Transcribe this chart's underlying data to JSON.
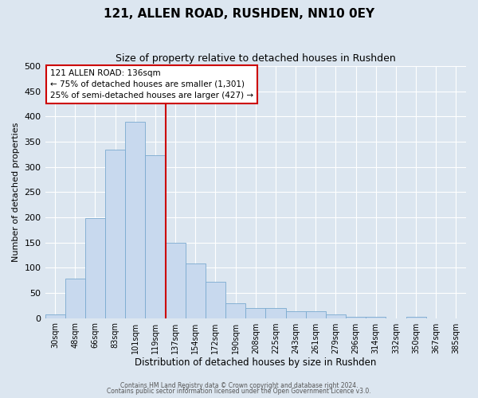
{
  "title": "121, ALLEN ROAD, RUSHDEN, NN10 0EY",
  "subtitle": "Size of property relative to detached houses in Rushden",
  "xlabel": "Distribution of detached houses by size in Rushden",
  "ylabel": "Number of detached properties",
  "bar_labels": [
    "30sqm",
    "48sqm",
    "66sqm",
    "83sqm",
    "101sqm",
    "119sqm",
    "137sqm",
    "154sqm",
    "172sqm",
    "190sqm",
    "208sqm",
    "225sqm",
    "243sqm",
    "261sqm",
    "279sqm",
    "296sqm",
    "314sqm",
    "332sqm",
    "350sqm",
    "367sqm",
    "385sqm"
  ],
  "bar_heights": [
    8,
    78,
    198,
    335,
    390,
    323,
    149,
    108,
    72,
    30,
    20,
    20,
    14,
    14,
    8,
    2,
    2,
    0,
    2,
    0,
    0
  ],
  "bar_color": "#c8d9ee",
  "bar_edge_color": "#7aaad0",
  "bar_width": 1.0,
  "ylim": [
    0,
    500
  ],
  "yticks": [
    0,
    50,
    100,
    150,
    200,
    250,
    300,
    350,
    400,
    450,
    500
  ],
  "vline_x": 6.0,
  "vline_color": "#cc0000",
  "annotation_title": "121 ALLEN ROAD: 136sqm",
  "annotation_line1": "← 75% of detached houses are smaller (1,301)",
  "annotation_line2": "25% of semi-detached houses are larger (427) →",
  "annotation_box_color": "#cc0000",
  "annotation_bg_color": "#ffffff",
  "footer_line1": "Contains HM Land Registry data © Crown copyright and database right 2024.",
  "footer_line2": "Contains public sector information licensed under the Open Government Licence v3.0.",
  "background_color": "#dce6f0",
  "plot_bg_color": "#dce6f0",
  "grid_color": "#ffffff",
  "figsize": [
    6.0,
    5.0
  ],
  "dpi": 100
}
